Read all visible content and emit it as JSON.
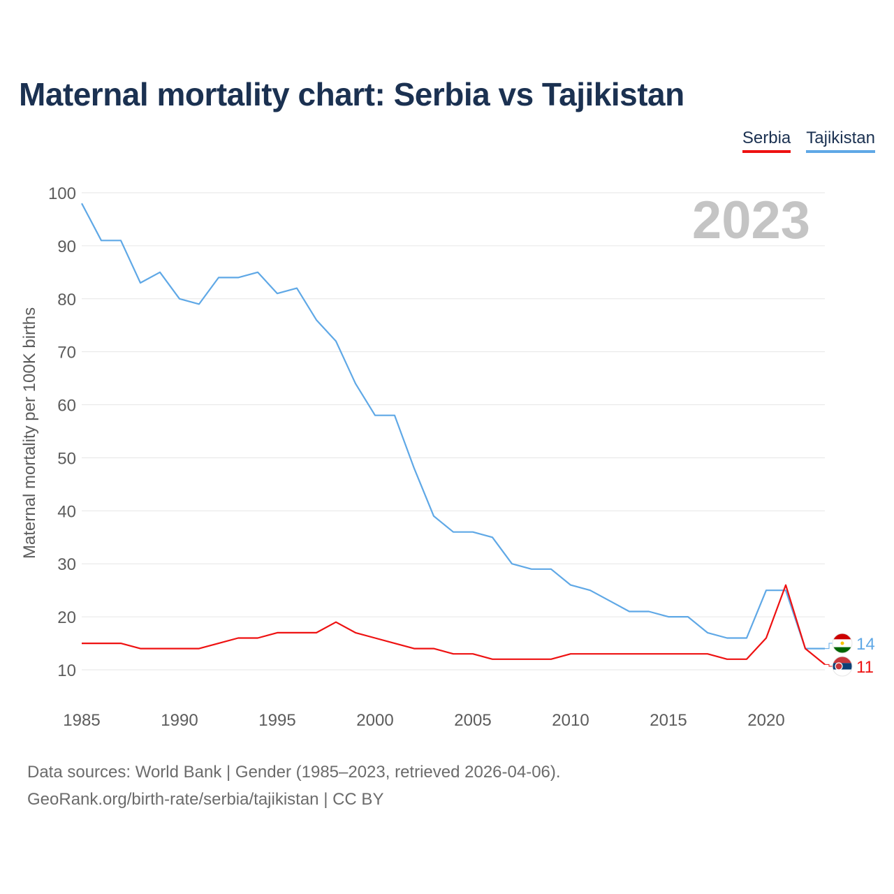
{
  "title": "Maternal mortality chart: Serbia vs Tajikistan",
  "legend": [
    {
      "label": "Serbia",
      "color": "#ee1111"
    },
    {
      "label": "Tajikistan",
      "color": "#5fa8e6"
    }
  ],
  "chart_data": {
    "type": "line",
    "title": "Maternal mortality chart: Serbia vs Tajikistan",
    "year_label": "2023",
    "xlabel": "",
    "ylabel": "Maternal mortality per 100K births",
    "xlim": [
      1985,
      2023
    ],
    "ylim": [
      10,
      100
    ],
    "x_ticks": [
      1985,
      1990,
      1995,
      2000,
      2005,
      2010,
      2015,
      2020
    ],
    "y_ticks": [
      10,
      20,
      30,
      40,
      50,
      60,
      70,
      80,
      90,
      100
    ],
    "grid": true,
    "x": [
      1985,
      1986,
      1987,
      1988,
      1989,
      1990,
      1991,
      1992,
      1993,
      1994,
      1995,
      1996,
      1997,
      1998,
      1999,
      2000,
      2001,
      2002,
      2003,
      2004,
      2005,
      2006,
      2007,
      2008,
      2009,
      2010,
      2011,
      2012,
      2013,
      2014,
      2015,
      2016,
      2017,
      2018,
      2019,
      2020,
      2021,
      2022,
      2023
    ],
    "series": [
      {
        "name": "Tajikistan",
        "color": "#5fa8e6",
        "end_label": "14",
        "values": [
          98,
          91,
          91,
          83,
          85,
          80,
          79,
          84,
          84,
          85,
          81,
          82,
          76,
          72,
          64,
          58,
          58,
          48,
          39,
          36,
          36,
          35,
          30,
          29,
          29,
          26,
          25,
          23,
          21,
          21,
          20,
          20,
          17,
          16,
          16,
          25,
          25,
          14,
          14
        ]
      },
      {
        "name": "Serbia",
        "color": "#ee1111",
        "end_label": "11",
        "values": [
          15,
          15,
          15,
          14,
          14,
          14,
          14,
          15,
          16,
          16,
          17,
          17,
          17,
          19,
          17,
          16,
          15,
          14,
          14,
          13,
          13,
          12,
          12,
          12,
          12,
          13,
          13,
          13,
          13,
          13,
          13,
          13,
          13,
          12,
          12,
          16,
          26,
          14,
          11
        ]
      }
    ]
  },
  "footer": {
    "line1": "Data sources: World Bank | Gender (1985–2023, retrieved 2026-04-06).",
    "line2": "GeoRank.org/birth-rate/serbia/tajikistan | CC BY"
  }
}
